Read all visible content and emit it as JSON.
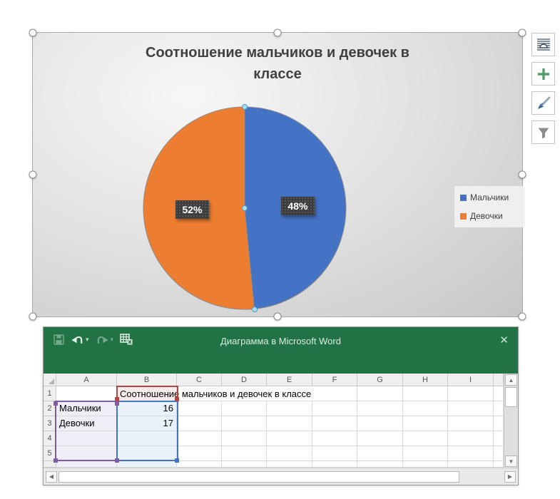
{
  "chart_data": {
    "type": "pie",
    "title": "Соотношение мальчиков и девочек в классе",
    "categories": [
      "Мальчики",
      "Девочки"
    ],
    "values": [
      16,
      17
    ],
    "percent_labels": [
      "48%",
      "52%"
    ],
    "colors": [
      "#4472C4",
      "#ED7D31"
    ],
    "legend_position": "right",
    "data_labels_visible": true
  },
  "chart_tools": {
    "buttons": [
      {
        "icon": "layout-options-icon"
      },
      {
        "icon": "chart-elements-plus-icon"
      },
      {
        "icon": "chart-styles-brush-icon"
      },
      {
        "icon": "chart-filters-funnel-icon"
      }
    ]
  },
  "data_window": {
    "title": "Диаграмма в Microsoft Word",
    "toolbar": {
      "save": {
        "icon": "save-icon"
      },
      "undo": {
        "icon": "undo-icon",
        "dropdown_glyph": "▾"
      },
      "redo": {
        "icon": "redo-icon",
        "dropdown_glyph": "▾"
      },
      "edit_data": {
        "icon": "edit-data-in-excel-icon"
      },
      "close": {
        "icon": "close-icon",
        "glyph": "✕"
      }
    },
    "columns": [
      "A",
      "B",
      "C",
      "D",
      "E",
      "F",
      "G",
      "H",
      "I"
    ],
    "row_numbers": [
      "1",
      "2",
      "3",
      "4",
      "5"
    ],
    "cells": {
      "B1": "Соотношение мальчиков и девочек в классе",
      "A2": "Мальчики",
      "B2": "16",
      "A3": "Девочки",
      "B3": "17"
    },
    "range_colors": {
      "series_name_border": "#B84442",
      "categories_border": "#7C5CA6",
      "values_border": "#4472C4"
    },
    "scrollbar_glyphs": {
      "up": "▲",
      "down": "▼",
      "left": "◀",
      "right": "▶"
    }
  },
  "colors": {
    "titlebar_green": "#217346",
    "pie_blue": "#4472C4",
    "pie_orange": "#ED7D31",
    "chart_selection_gray": "#8C8C8C"
  }
}
